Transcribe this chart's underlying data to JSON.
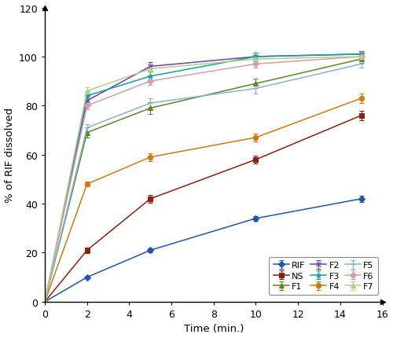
{
  "time": [
    0,
    2,
    5,
    10,
    15
  ],
  "series": {
    "RIF": {
      "values": [
        0,
        10,
        21,
        34,
        42
      ],
      "color": "#2255aa",
      "marker": "D"
    },
    "NS": {
      "values": [
        0,
        21,
        42,
        58,
        76
      ],
      "color": "#8b2010",
      "marker": "s"
    },
    "F1": {
      "values": [
        0,
        69,
        79,
        89,
        99
      ],
      "color": "#5a8a20",
      "marker": "^"
    },
    "F2": {
      "values": [
        0,
        82,
        96,
        100,
        101
      ],
      "color": "#7040aa",
      "marker": "x"
    },
    "F3": {
      "values": [
        0,
        84,
        92,
        100,
        101
      ],
      "color": "#10a0a0",
      "marker": "*"
    },
    "F4": {
      "values": [
        0,
        48,
        59,
        67,
        83
      ],
      "color": "#d47810",
      "marker": "o"
    },
    "F5": {
      "values": [
        0,
        71,
        81,
        87,
        97
      ],
      "color": "#8ab0d8",
      "marker": "+"
    },
    "F6": {
      "values": [
        0,
        80,
        90,
        97,
        100
      ],
      "color": "#d4a0a8",
      "marker": "D"
    },
    "F7": {
      "values": [
        0,
        86,
        95,
        99,
        100
      ],
      "color": "#b8cc88",
      "marker": "^"
    }
  },
  "errors": {
    "RIF": [
      0,
      0.5,
      0.8,
      1.0,
      1.2
    ],
    "NS": [
      0,
      1.2,
      1.5,
      1.5,
      2.0
    ],
    "F1": [
      0,
      2.0,
      2.5,
      2.0,
      1.5
    ],
    "F2": [
      0,
      2.0,
      1.8,
      1.5,
      1.2
    ],
    "F3": [
      0,
      2.0,
      2.0,
      1.5,
      1.2
    ],
    "F4": [
      0,
      1.0,
      1.5,
      1.5,
      2.0
    ],
    "F5": [
      0,
      1.5,
      2.0,
      2.0,
      1.5
    ],
    "F6": [
      0,
      1.5,
      1.5,
      1.5,
      1.2
    ],
    "F7": [
      0,
      1.5,
      1.5,
      1.5,
      1.5
    ]
  },
  "xlabel": "Time (min.)",
  "ylabel": "% of RIF dissolved",
  "xlim": [
    0,
    16
  ],
  "ylim": [
    0,
    120
  ],
  "xticks": [
    0,
    2,
    4,
    6,
    8,
    10,
    12,
    14,
    16
  ],
  "yticks": [
    0,
    20,
    40,
    60,
    80,
    100,
    120
  ],
  "legend_order": [
    "RIF",
    "NS",
    "F1",
    "F2",
    "F3",
    "F4",
    "F5",
    "F6",
    "F7"
  ],
  "figsize": [
    5.0,
    4.31
  ],
  "dpi": 100
}
